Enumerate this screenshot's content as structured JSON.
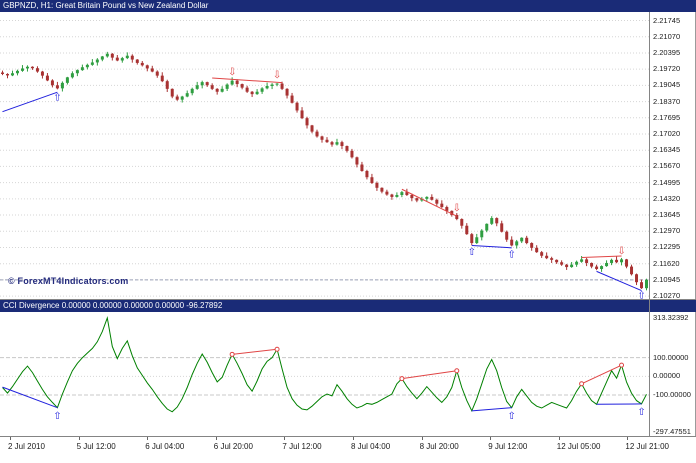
{
  "watermark": "© ForexMT4Indicators.com",
  "icons": {
    "up_arrow": "⇧",
    "down_arrow": "⇩"
  },
  "colors": {
    "panel_header_bg": "#1a2b77",
    "panel_header_text": "#ffffff",
    "background": "#ffffff",
    "grid": "#d6d6d6",
    "separator": "#848484",
    "bull": "#2f9e41",
    "bear": "#a83232",
    "bull_div": "#2020dd",
    "bear_div": "#e04545",
    "cci": "#008000",
    "bid_line": "#9aa0b8",
    "level": "#c8c8c8",
    "watermark_color": "#232a7c",
    "axis_text": "#000000"
  },
  "chart_data": [
    {
      "type": "candlestick",
      "symbol": "GBPNZD",
      "timeframe": "H1",
      "title": "GBPNZD, H1: Great Britain Pound vs New Zealand Dollar",
      "y_range": [
        2.1015,
        2.221
      ],
      "bid": 2.10945,
      "first_open": 2.1958,
      "closes": [
        2.1952,
        2.1946,
        2.1955,
        2.1965,
        2.1975,
        2.1982,
        2.1976,
        2.1962,
        2.1945,
        2.1925,
        2.1905,
        2.1892,
        2.1915,
        2.1938,
        2.1955,
        2.1968,
        2.198,
        2.199,
        2.2,
        2.2012,
        2.2025,
        2.2036,
        2.202,
        2.2008,
        2.2018,
        2.2028,
        2.2012,
        2.1998,
        2.1988,
        2.1975,
        2.1962,
        2.1945,
        2.1922,
        2.189,
        2.1858,
        2.1845,
        2.1858,
        2.1872,
        2.189,
        2.1905,
        2.1918,
        2.1905,
        2.189,
        2.1878,
        2.189,
        2.1908,
        2.1924,
        2.191,
        2.1895,
        2.1878,
        2.1868,
        2.1878,
        2.1892,
        2.1902,
        2.1908,
        2.1912,
        2.189,
        2.1862,
        2.1832,
        2.18,
        2.1768,
        2.1738,
        2.1712,
        2.1692,
        2.1678,
        2.1668,
        2.1658,
        2.1668,
        2.1652,
        2.1632,
        2.1605,
        2.1575,
        2.1548,
        2.1522,
        2.1498,
        2.1478,
        2.1462,
        2.145,
        2.144,
        2.1448,
        2.146,
        2.1448,
        2.1435,
        2.1425,
        2.1432,
        2.144,
        2.1428,
        2.1412,
        2.1398,
        2.1382,
        2.1365,
        2.1348,
        2.132,
        2.1285,
        2.1248,
        2.1272,
        2.13,
        2.1328,
        2.1352,
        2.133,
        2.1295,
        2.1262,
        2.1238,
        2.1255,
        2.127,
        2.1248,
        2.1228,
        2.121,
        2.1195,
        2.1185,
        2.1178,
        2.1168,
        2.1158,
        2.1148,
        2.1158,
        2.117,
        2.118,
        2.1165,
        2.115,
        2.114,
        2.1152,
        2.1165,
        2.1178,
        2.1168,
        2.118,
        2.115,
        2.1118,
        2.1085,
        2.106,
        2.10945
      ],
      "wick_up_pattern": [
        0.0008,
        0.0003,
        0.0011,
        0.0005,
        0.0014,
        0.0006,
        0.0002
      ],
      "wick_down_pattern": [
        0.0005,
        0.0012,
        0.0003,
        0.0009,
        0.0004,
        0.0013,
        0.0007
      ],
      "axis_labels": [
        "2.21745",
        "2.21070",
        "2.20395",
        "2.19720",
        "2.19045",
        "2.18370",
        "2.17695",
        "2.17020",
        "2.16345",
        "2.15670",
        "2.14995",
        "2.14320",
        "2.13645",
        "2.12970",
        "2.12295",
        "2.11620",
        "2.10945",
        "2.10270"
      ],
      "divergence_lines": [
        {
          "type": "bullish",
          "from": {
            "i": 0,
            "v": 2.1795
          },
          "to": {
            "i": 11,
            "v": 2.1876
          }
        },
        {
          "type": "bearish",
          "from": {
            "i": 42,
            "v": 2.1935
          },
          "to": {
            "i": 56,
            "v": 2.1916
          }
        },
        {
          "type": "bearish",
          "from": {
            "i": 80,
            "v": 2.1472
          },
          "to": {
            "i": 91,
            "v": 2.136
          }
        },
        {
          "type": "bullish",
          "from": {
            "i": 94,
            "v": 2.1238
          },
          "to": {
            "i": 102,
            "v": 2.1228
          }
        },
        {
          "type": "bearish",
          "from": {
            "i": 116,
            "v": 2.1188
          },
          "to": {
            "i": 124,
            "v": 2.1194
          }
        },
        {
          "type": "bullish",
          "from": {
            "i": 119,
            "v": 2.113
          },
          "to": {
            "i": 128,
            "v": 2.105
          }
        }
      ],
      "arrows": [
        {
          "dir": "up",
          "i": 11,
          "v": 2.1852
        },
        {
          "dir": "down",
          "i": 46,
          "v": 2.1958
        },
        {
          "dir": "down",
          "i": 55,
          "v": 2.1946
        },
        {
          "dir": "down",
          "i": 91,
          "v": 2.1392
        },
        {
          "dir": "up",
          "i": 94,
          "v": 2.1208
        },
        {
          "dir": "up",
          "i": 102,
          "v": 2.1198
        },
        {
          "dir": "down",
          "i": 124,
          "v": 2.1212
        },
        {
          "dir": "up",
          "i": 128,
          "v": 2.1028
        }
      ]
    },
    {
      "type": "line",
      "name": "CCI Divergence",
      "header_text": "CCI Divergence 0.00000 0.00000 0.00000 0.00000 -96.27892",
      "current_value": -96.27892,
      "y_range": [
        -320,
        345
      ],
      "levels_dashed": [
        100,
        -100
      ],
      "levels_dotted": [
        0
      ],
      "values": [
        -60,
        -90,
        -55,
        -15,
        25,
        55,
        20,
        -25,
        -70,
        -110,
        -140,
        -168,
        -95,
        -30,
        30,
        70,
        100,
        125,
        150,
        185,
        240,
        313.32,
        160,
        95,
        150,
        190,
        110,
        45,
        5,
        -35,
        -70,
        -110,
        -145,
        -175,
        -190,
        -165,
        -120,
        -60,
        10,
        70,
        120,
        75,
        20,
        -30,
        -5,
        60,
        118,
        70,
        15,
        -45,
        -80,
        -25,
        40,
        80,
        100,
        145,
        40,
        -60,
        -120,
        -155,
        -175,
        -180,
        -160,
        -135,
        -110,
        -95,
        -105,
        -45,
        -80,
        -120,
        -150,
        -170,
        -160,
        -145,
        -150,
        -140,
        -125,
        -110,
        -95,
        -40,
        -12,
        -55,
        -90,
        -120,
        -90,
        -55,
        -85,
        -115,
        -140,
        -110,
        -60,
        30,
        -60,
        -130,
        -185,
        -120,
        -40,
        40,
        90,
        30,
        -60,
        -135,
        -168,
        -110,
        -70,
        -105,
        -140,
        -160,
        -170,
        -155,
        -140,
        -150,
        -160,
        -170,
        -130,
        -80,
        -40,
        -90,
        -130,
        -150,
        -90,
        -30,
        30,
        -10,
        60,
        -30,
        -90,
        -130,
        -148,
        -96.27892
      ],
      "axis_labels": [
        {
          "text": "313.32392",
          "v": 313.32392
        },
        {
          "text": "100.00000",
          "v": 100
        },
        {
          "text": "0.00000",
          "v": 0
        },
        {
          "text": "-100.00000",
          "v": -100
        },
        {
          "text": "-297.47551",
          "v": -297.47551
        }
      ],
      "divergence_lines": [
        {
          "type": "bullish",
          "from": {
            "i": 0,
            "v": -58
          },
          "to": {
            "i": 11,
            "v": -168
          },
          "markers": false
        },
        {
          "type": "bearish",
          "from": {
            "i": 46,
            "v": 118
          },
          "to": {
            "i": 55,
            "v": 145
          },
          "markers": true
        },
        {
          "type": "bearish",
          "from": {
            "i": 80,
            "v": -12
          },
          "to": {
            "i": 91,
            "v": 30
          },
          "markers": true
        },
        {
          "type": "bullish",
          "from": {
            "i": 94,
            "v": -185
          },
          "to": {
            "i": 102,
            "v": -168
          },
          "markers": false
        },
        {
          "type": "bearish",
          "from": {
            "i": 116,
            "v": -40
          },
          "to": {
            "i": 124,
            "v": 60
          },
          "markers": true
        },
        {
          "type": "bullish",
          "from": {
            "i": 119,
            "v": -150
          },
          "to": {
            "i": 128,
            "v": -148
          },
          "markers": false
        }
      ],
      "arrows": [
        {
          "dir": "up",
          "i": 11,
          "v": -215
        },
        {
          "dir": "up",
          "i": 102,
          "v": -215
        },
        {
          "dir": "up",
          "i": 128,
          "v": -195
        }
      ]
    }
  ],
  "time_axis": {
    "labels": [
      "2 Jul 2010",
      "5 Jul 12:00",
      "6 Jul 04:00",
      "6 Jul 20:00",
      "7 Jul 12:00",
      "8 Jul 04:00",
      "8 Jul 20:00",
      "9 Jul 12:00",
      "12 Jul 05:00",
      "12 Jul 21:00"
    ]
  }
}
